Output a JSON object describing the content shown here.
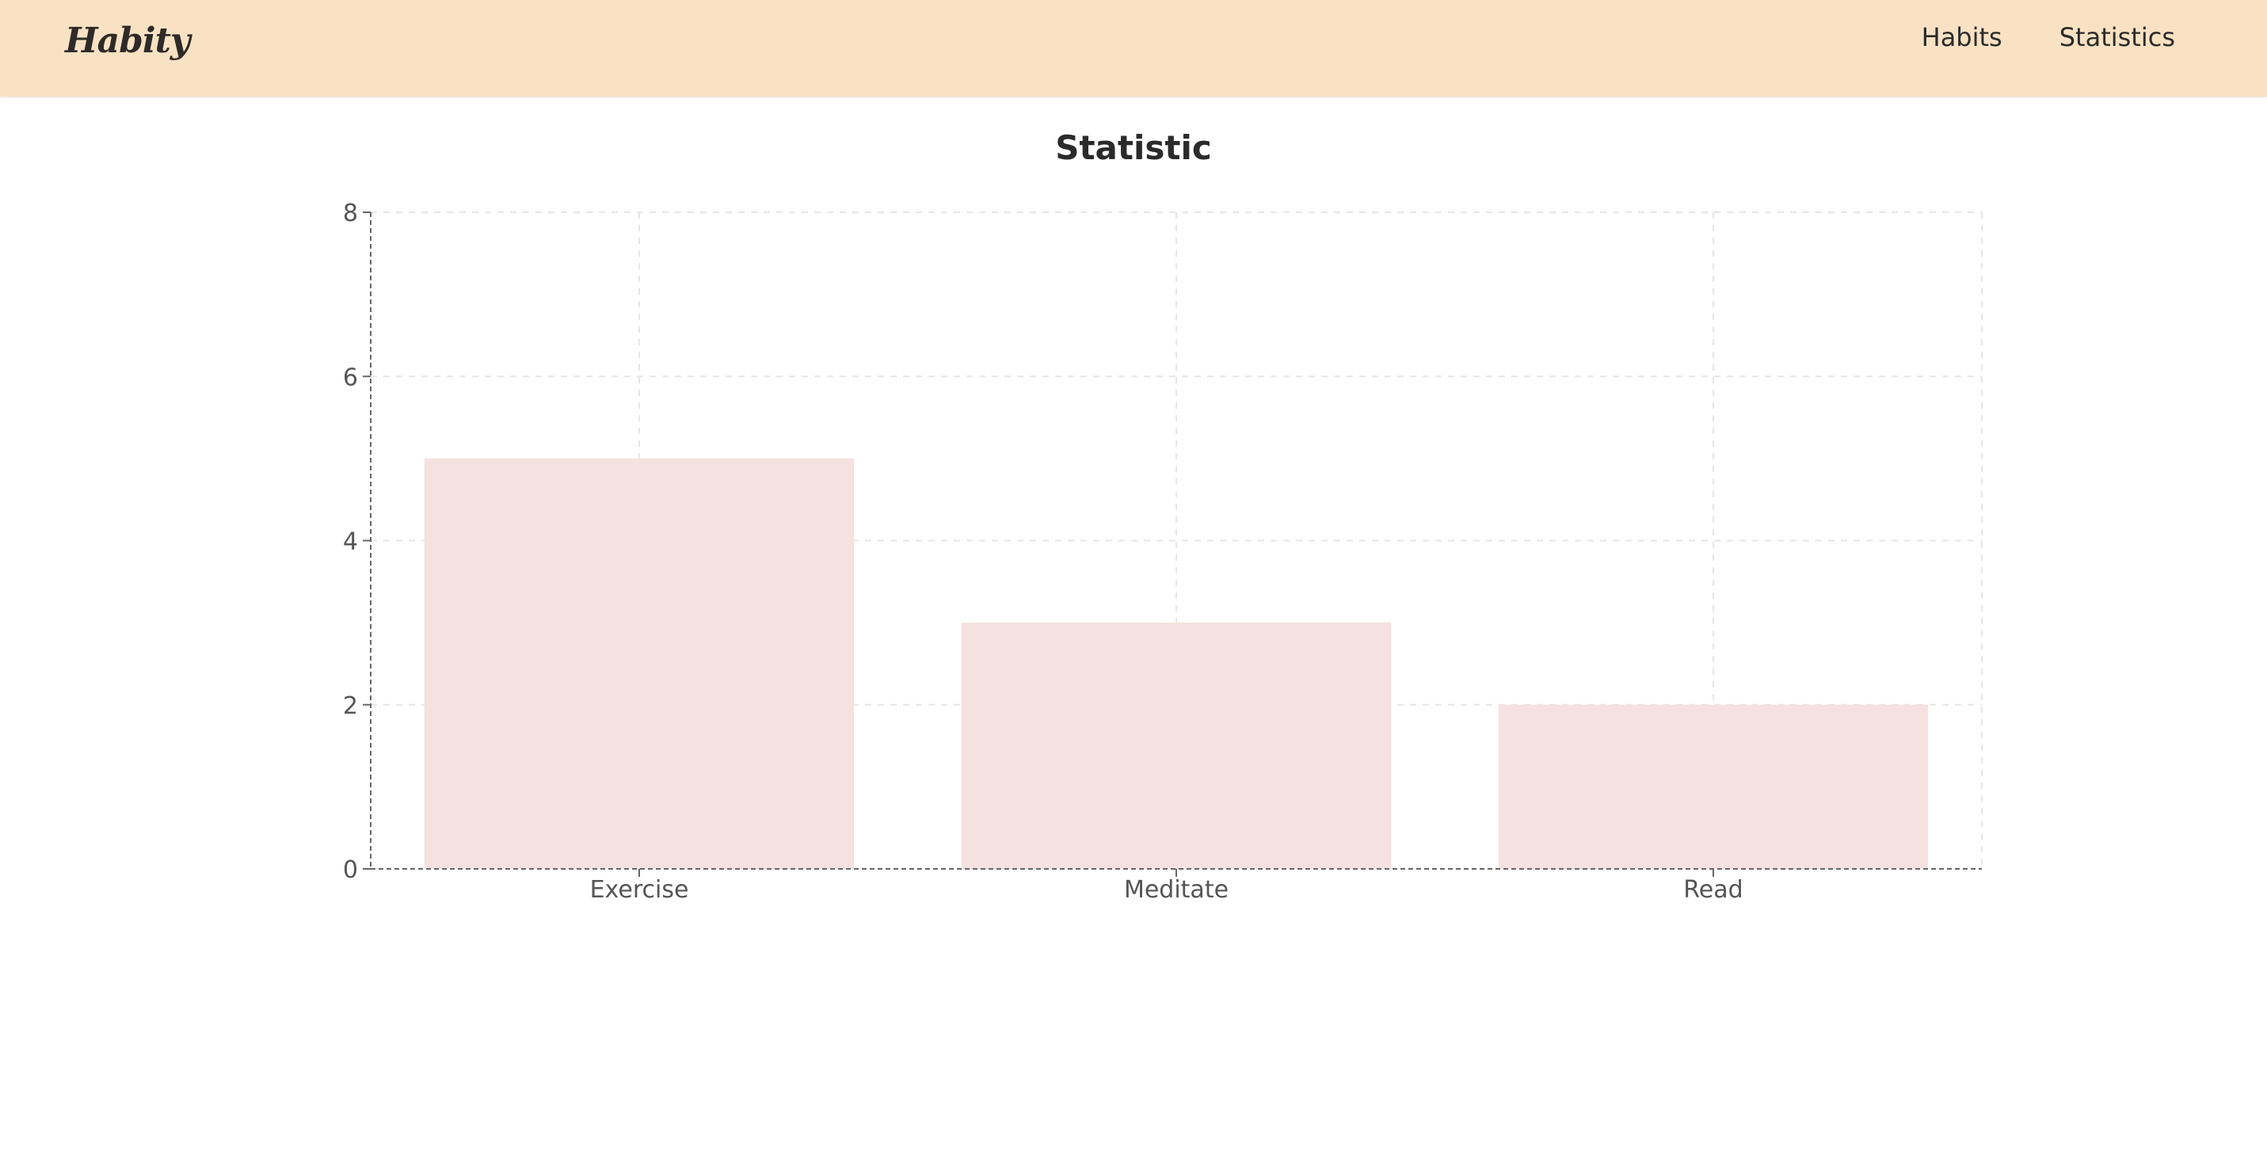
{
  "header": {
    "logo": "Habity",
    "nav": [
      "Habits",
      "Statistics"
    ]
  },
  "page": {
    "title": "Statistic"
  },
  "colors": {
    "header_bg": "#f9e2c3",
    "bar_fill": "#f5e1e0",
    "axis": "#666666",
    "grid": "#e6e6e6"
  },
  "chart_data": {
    "type": "bar",
    "categories": [
      "Exercise",
      "Meditate",
      "Read"
    ],
    "values": [
      5,
      3,
      2
    ],
    "ylim": [
      0,
      8
    ],
    "yticks": [
      0,
      2,
      4,
      6,
      8
    ],
    "title": "",
    "xlabel": "",
    "ylabel": "",
    "grid": true,
    "legend": false
  }
}
